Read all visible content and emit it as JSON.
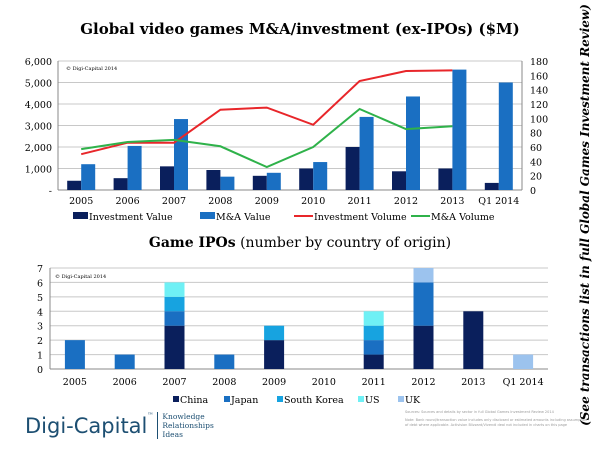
{
  "chart_data": [
    {
      "type": "bar+line",
      "title": "Global video games M&A/investment (ex-IPOs) ($M)",
      "watermark": "© Digi-Capital 2014",
      "categories": [
        "2005",
        "2006",
        "2007",
        "2008",
        "2009",
        "2010",
        "2011",
        "2012",
        "2013",
        "Q1 2014"
      ],
      "ylim": [
        0,
        6000
      ],
      "yticks": [
        "-",
        "1,000",
        "2,000",
        "3,000",
        "4,000",
        "5,000",
        "6,000"
      ],
      "y2lim": [
        0,
        180
      ],
      "y2ticks": [
        "0",
        "20",
        "40",
        "60",
        "80",
        "100",
        "120",
        "140",
        "160",
        "180"
      ],
      "grid": true,
      "legend": "bottom",
      "series": [
        {
          "name": "Investment Value",
          "type": "bar",
          "axis": "left",
          "color": "#0a1f5c",
          "values": [
            430,
            550,
            1100,
            930,
            660,
            1000,
            2000,
            870,
            1000,
            330
          ]
        },
        {
          "name": "M&A Value",
          "type": "bar",
          "axis": "left",
          "color": "#1a6fc2",
          "values": [
            1200,
            2050,
            3300,
            620,
            800,
            1300,
            3400,
            4350,
            5600,
            5000
          ]
        },
        {
          "name": "Investment Volume",
          "type": "line",
          "axis": "right",
          "color": "#e8262a",
          "values": [
            50,
            66,
            66,
            112,
            115,
            91,
            152,
            166,
            167,
            null
          ]
        },
        {
          "name": "M&A Volume",
          "type": "line",
          "axis": "right",
          "color": "#2fb24a",
          "values": [
            57,
            67,
            70,
            61,
            32,
            60,
            113,
            85,
            89,
            null
          ]
        }
      ]
    },
    {
      "type": "stacked-bar",
      "title": "Game IPOs",
      "title_suffix": "(number by country of origin)",
      "watermark": "© Digi-Capital 2014",
      "categories": [
        "2005",
        "2006",
        "2007",
        "2008",
        "2009",
        "2010",
        "2011",
        "2012",
        "2013",
        "Q1 2014"
      ],
      "ylim": [
        0,
        7
      ],
      "yticks": [
        "0",
        "1",
        "2",
        "3",
        "4",
        "5",
        "6",
        "7"
      ],
      "grid": true,
      "legend": "bottom",
      "series": [
        {
          "name": "China",
          "color": "#0a1f5c",
          "values": [
            0,
            0,
            3,
            0,
            2,
            0,
            1,
            3,
            4,
            0
          ]
        },
        {
          "name": "Japan",
          "color": "#1a6fc2",
          "values": [
            2,
            1,
            1,
            1,
            0,
            0,
            1,
            3,
            0,
            0
          ]
        },
        {
          "name": "South Korea",
          "color": "#17a3e0",
          "values": [
            0,
            0,
            1,
            0,
            1,
            0,
            1,
            0,
            0,
            0
          ]
        },
        {
          "name": "US",
          "color": "#6ff0f5",
          "values": [
            0,
            0,
            1,
            0,
            0,
            0,
            1,
            0,
            0,
            0
          ]
        },
        {
          "name": "UK",
          "color": "#9cc3ee",
          "values": [
            0,
            0,
            0,
            0,
            0,
            0,
            0,
            1,
            0,
            1
          ]
        }
      ]
    }
  ],
  "side_note": "(See transactions list in full Global Games Investment Review)",
  "logo": {
    "name": "Digi-Capital",
    "tm": "™",
    "tagline": [
      "Knowledge",
      "Relationships",
      "Ideas"
    ]
  },
  "footnote": [
    "Sources: Sources and details by sector in full Global Games Investment Review 2014",
    "Note: Bank round/transaction value includes only disclosed or estimated amounts including assumption of debt where applicable. Activision Blizzard/Vivendi deal not included in charts on this page"
  ]
}
